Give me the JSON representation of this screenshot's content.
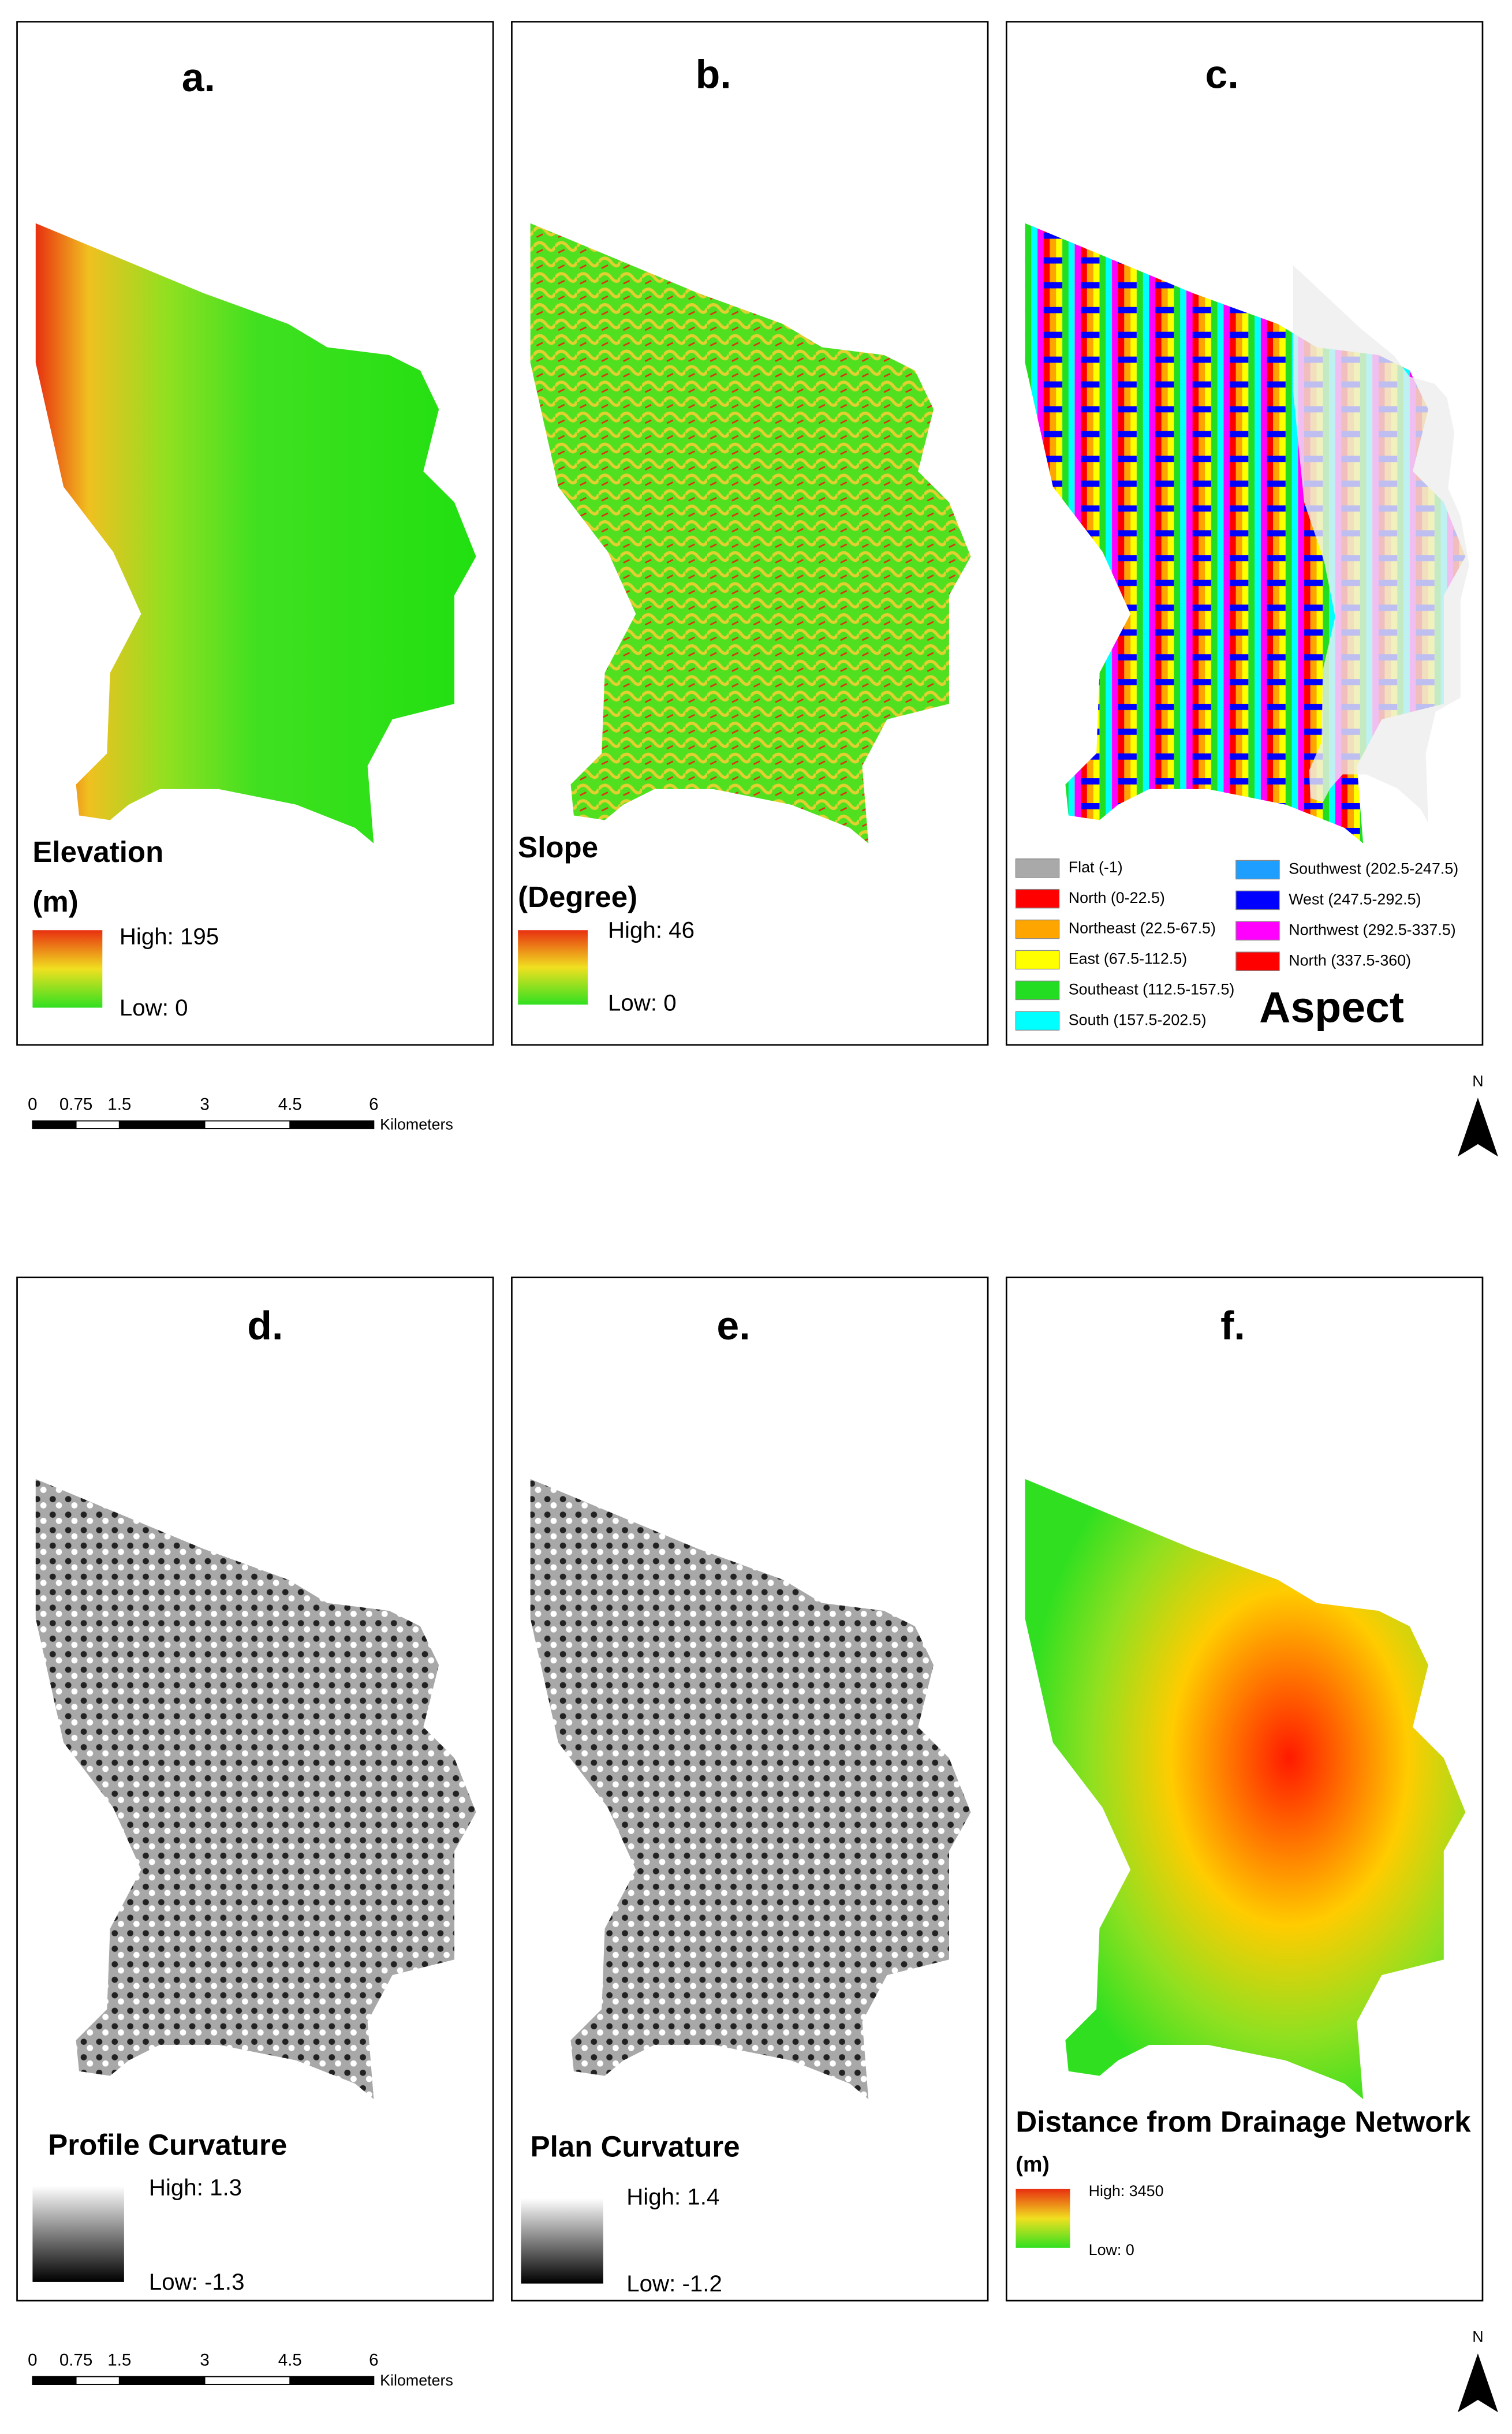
{
  "panels": [
    {
      "label": "a.",
      "legend_title": "Elevation",
      "legend_unit": "(m)",
      "high": "High: 195",
      "low": "Low: 0"
    },
    {
      "label": "b.",
      "legend_title": "Slope",
      "legend_unit": "(Degree)",
      "high": "High: 46",
      "low": "Low: 0"
    },
    {
      "label": "c.",
      "legend_title": "Aspect"
    },
    {
      "label": "d.",
      "legend_title": "Profile Curvature",
      "high": "High: 1.3",
      "low": "Low: -1.3"
    },
    {
      "label": "e.",
      "legend_title": "Plan Curvature",
      "high": "High: 1.4",
      "low": "Low: -1.2"
    },
    {
      "label": "f.",
      "legend_title": "Distance from Drainage Network",
      "legend_unit": "(m)",
      "high": "High:  3450",
      "low": "Low: 0"
    }
  ],
  "aspect_legend": [
    {
      "label": "Flat (-1)",
      "color": "#a9a9a9"
    },
    {
      "label": "North (0-22.5)",
      "color": "#ff0000"
    },
    {
      "label": "Northeast (22.5-67.5)",
      "color": "#ffa500"
    },
    {
      "label": "East (67.5-112.5)",
      "color": "#ffff00"
    },
    {
      "label": "Southeast (112.5-157.5)",
      "color": "#22dd22"
    },
    {
      "label": "South (157.5-202.5)",
      "color": "#00ffff"
    },
    {
      "label": "Southwest (202.5-247.5)",
      "color": "#1e9fff"
    },
    {
      "label": "West (247.5-292.5)",
      "color": "#0000ff"
    },
    {
      "label": "Northwest (292.5-337.5)",
      "color": "#ff00ff"
    },
    {
      "label": "North (337.5-360)",
      "color": "#ff0000"
    }
  ],
  "scale_bar": {
    "ticks": [
      "0",
      "0.75",
      "1.5",
      "3",
      "4.5",
      "6"
    ],
    "unit": "Kilometers"
  },
  "north": "N"
}
